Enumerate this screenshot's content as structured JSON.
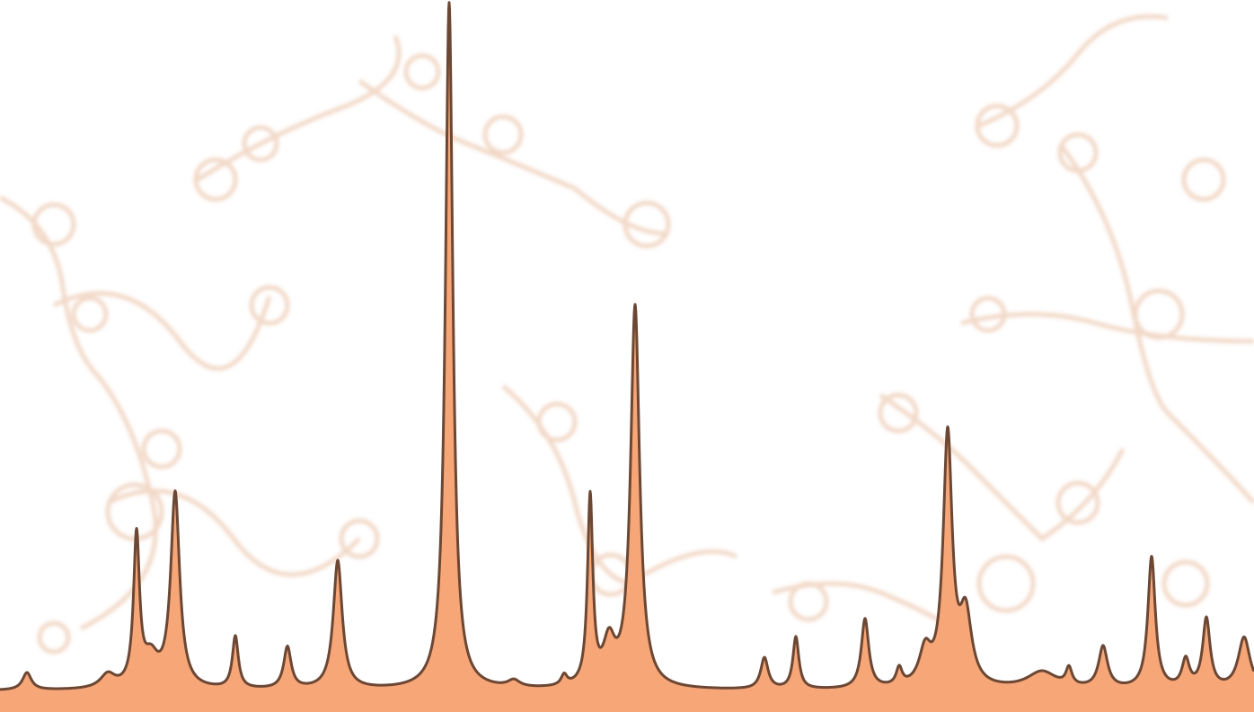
{
  "chart_data": {
    "type": "line",
    "title": "",
    "xlabel": "",
    "ylabel": "",
    "xlim": [
      0,
      1396
    ],
    "ylim": [
      0,
      100
    ],
    "grid": false,
    "legend": "none",
    "baseline": 1.5,
    "peaks": [
      {
        "x": 30,
        "height": 2.5,
        "width": 6
      },
      {
        "x": 120,
        "height": 2.0,
        "width": 10
      },
      {
        "x": 152,
        "height": 21.5,
        "width": 4
      },
      {
        "x": 168,
        "height": 4.0,
        "width": 10
      },
      {
        "x": 195,
        "height": 28.0,
        "width": 6
      },
      {
        "x": 262,
        "height": 7.5,
        "width": 4
      },
      {
        "x": 320,
        "height": 6.0,
        "width": 5
      },
      {
        "x": 376,
        "height": 18.5,
        "width": 6
      },
      {
        "x": 500,
        "height": 99.0,
        "width": 5
      },
      {
        "x": 572,
        "height": 1.0,
        "width": 8
      },
      {
        "x": 628,
        "height": 1.5,
        "width": 4
      },
      {
        "x": 657,
        "height": 27.0,
        "width": 3.5
      },
      {
        "x": 678,
        "height": 6.0,
        "width": 8
      },
      {
        "x": 707,
        "height": 55.0,
        "width": 6
      },
      {
        "x": 851,
        "height": 4.5,
        "width": 5
      },
      {
        "x": 886,
        "height": 7.5,
        "width": 4
      },
      {
        "x": 963,
        "height": 10.0,
        "width": 5
      },
      {
        "x": 1001,
        "height": 2.5,
        "width": 4
      },
      {
        "x": 1030,
        "height": 5.0,
        "width": 8
      },
      {
        "x": 1055,
        "height": 36.0,
        "width": 6
      },
      {
        "x": 1075,
        "height": 10.0,
        "width": 8
      },
      {
        "x": 1160,
        "height": 2.5,
        "width": 20
      },
      {
        "x": 1190,
        "height": 2.5,
        "width": 4
      },
      {
        "x": 1228,
        "height": 6.0,
        "width": 6
      },
      {
        "x": 1282,
        "height": 19.0,
        "width": 5
      },
      {
        "x": 1320,
        "height": 4.0,
        "width": 5
      },
      {
        "x": 1343,
        "height": 10.0,
        "width": 5
      },
      {
        "x": 1385,
        "height": 7.5,
        "width": 8
      }
    ]
  },
  "colors": {
    "fill": "#f7a677",
    "line": "#6b4734",
    "background": "#ffffff",
    "decoration": "#e7b99a"
  }
}
